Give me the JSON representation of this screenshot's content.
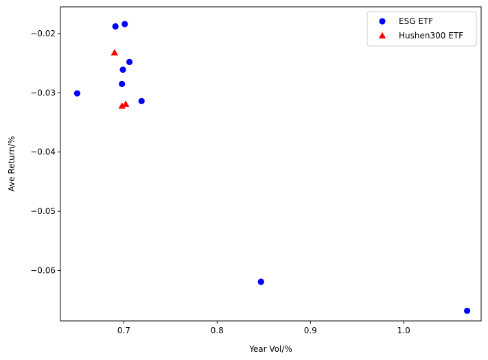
{
  "chart_data": {
    "type": "scatter",
    "title": "",
    "xlabel": "Year Vol/%",
    "ylabel": "Ave Return/%",
    "xlim": [
      0.632,
      1.083
    ],
    "ylim": [
      -0.0685,
      -0.0155
    ],
    "xticks": [
      0.7,
      0.8,
      0.9,
      1.0
    ],
    "xtick_labels": [
      "0.7",
      "0.8",
      "0.9",
      "1.0"
    ],
    "yticks": [
      -0.02,
      -0.03,
      -0.04,
      -0.05,
      -0.06
    ],
    "ytick_labels": [
      "−0.02",
      "−0.03",
      "−0.04",
      "−0.05",
      "−0.06"
    ],
    "grid": false,
    "legend_position": "top-right",
    "series": [
      {
        "name": "ESG ETF",
        "marker": "circle",
        "color": "#0000ff",
        "points": [
          {
            "x": 0.65,
            "y": -0.0301
          },
          {
            "x": 0.691,
            "y": -0.0188
          },
          {
            "x": 0.701,
            "y": -0.0184
          },
          {
            "x": 0.699,
            "y": -0.0261
          },
          {
            "x": 0.706,
            "y": -0.0248
          },
          {
            "x": 0.698,
            "y": -0.0285
          },
          {
            "x": 0.719,
            "y": -0.0314
          },
          {
            "x": 0.847,
            "y": -0.0619
          },
          {
            "x": 1.068,
            "y": -0.0668
          }
        ]
      },
      {
        "name": "Hushen300 ETF",
        "marker": "triangle",
        "color": "#ff0000",
        "points": [
          {
            "x": 0.69,
            "y": -0.0232
          },
          {
            "x": 0.698,
            "y": -0.0322
          },
          {
            "x": 0.702,
            "y": -0.0319
          }
        ]
      }
    ]
  }
}
